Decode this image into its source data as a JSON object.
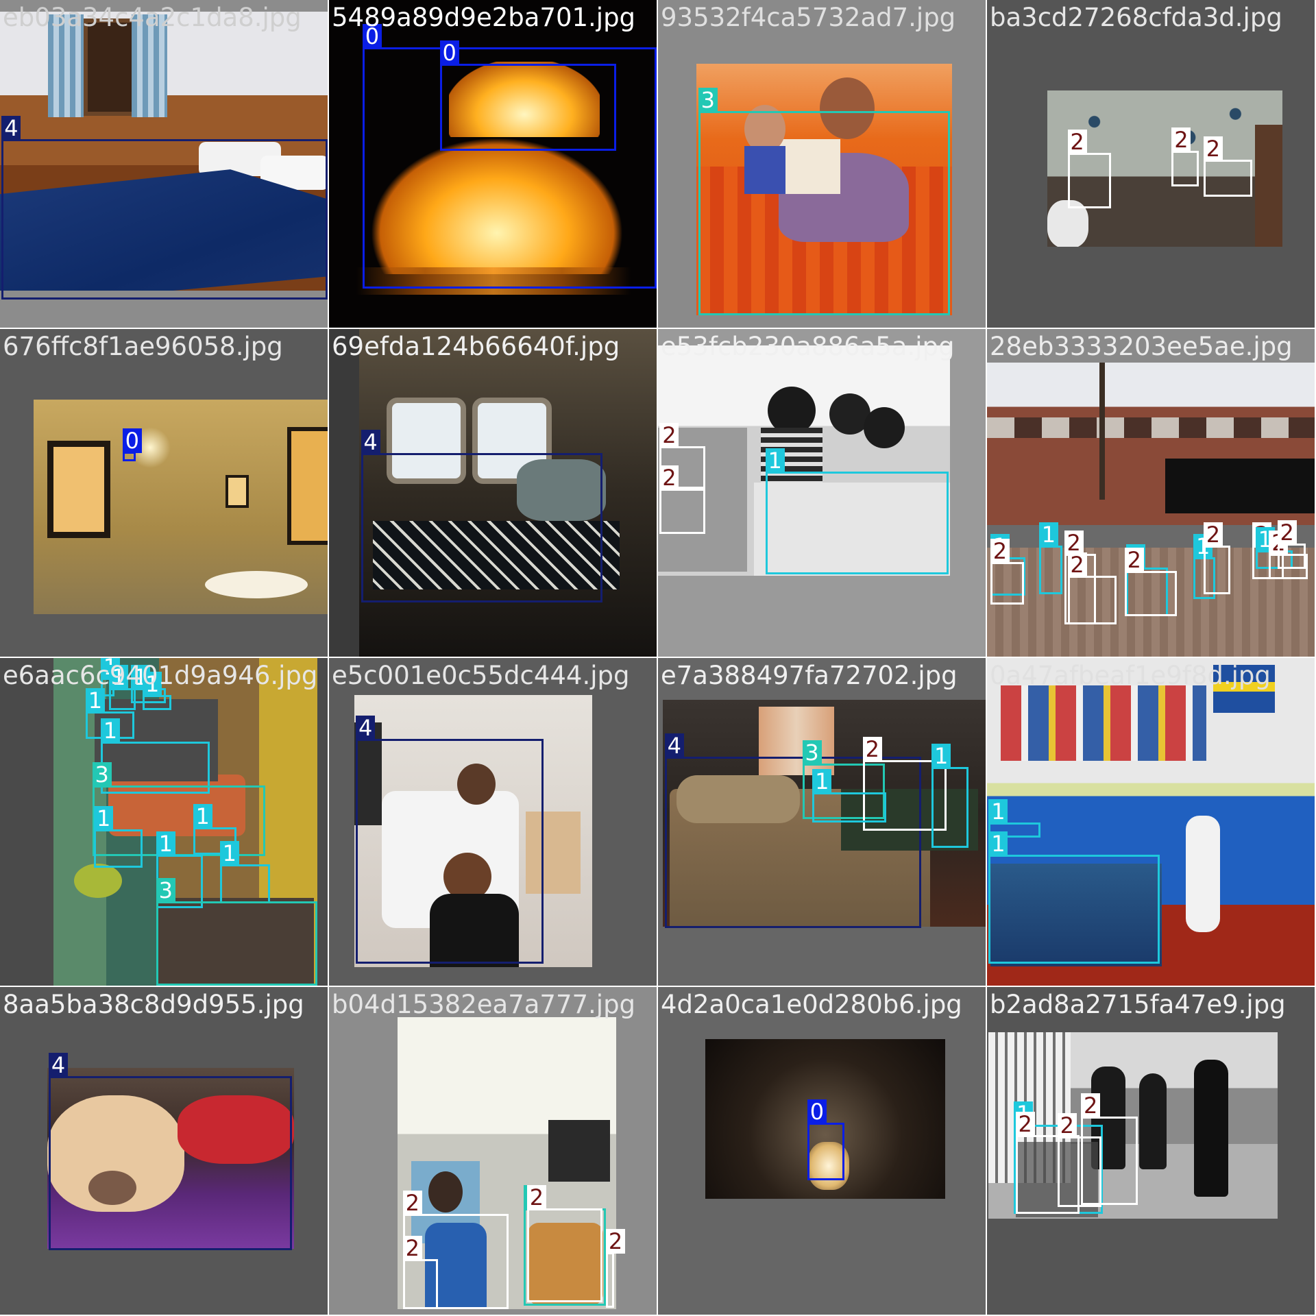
{
  "colors": {
    "background": "#ffffff",
    "class_colors": {
      "0": "#0a1ee6",
      "1": "#1ec8dc",
      "2": "#ffffff",
      "3": "#23c8b4",
      "4": "#141e6e"
    },
    "class_label_text": {
      "0": "#ffffff",
      "1": "#ffffff",
      "2": "#6e1414",
      "3": "#ffffff",
      "4": "#ffffff"
    }
  },
  "tiles": [
    {
      "filename": "eb03a34c4a2c1da8.jpg",
      "labels": [
        "4"
      ]
    },
    {
      "filename": "5489a89d9e2ba701.jpg",
      "labels": [
        "0",
        "0"
      ]
    },
    {
      "filename": "93532f4ca5732ad7.jpg",
      "labels": [
        "3"
      ]
    },
    {
      "filename": "ba3cd27268cfda3d.jpg",
      "labels": [
        "2",
        "2",
        "2"
      ]
    },
    {
      "filename": "676ffc8f1ae96058.jpg",
      "labels": [
        "0"
      ]
    },
    {
      "filename": "69efda124b66640f.jpg",
      "labels": [
        "4"
      ]
    },
    {
      "filename": "e53fcb230a886a5a.jpg",
      "labels": [
        "2",
        "2",
        "1"
      ]
    },
    {
      "filename": "28eb3333203ee5ae.jpg",
      "labels": [
        "1",
        "2",
        "1",
        "2",
        "2",
        "1",
        "2",
        "1",
        "2",
        "2",
        "1",
        "2",
        "2"
      ]
    },
    {
      "filename": "e6aac6c9401d9a946.jpg",
      "labels": [
        "1",
        "1",
        "1",
        "1",
        "1",
        "1",
        "3",
        "1",
        "1",
        "1",
        "1",
        "3"
      ]
    },
    {
      "filename": "e5c001e0c55dc444.jpg",
      "labels": [
        "4"
      ]
    },
    {
      "filename": "e7a388497fa72702.jpg",
      "labels": [
        "4",
        "3",
        "2",
        "1",
        "1"
      ]
    },
    {
      "filename": "0a47afbeaf1e9f8d.jpg",
      "labels": [
        "1",
        "1"
      ]
    },
    {
      "filename": "8aa5ba38c8d9d955.jpg",
      "labels": [
        "4"
      ]
    },
    {
      "filename": "b04d15382ea7a777.jpg",
      "labels": [
        "2",
        "2",
        "3",
        "2",
        "2"
      ]
    },
    {
      "filename": "4d2a0ca1e0d280b6.jpg",
      "labels": [
        "0"
      ]
    },
    {
      "filename": "b2ad8a2715fa47e9.jpg",
      "labels": [
        "1",
        "2",
        "2",
        "2"
      ]
    }
  ]
}
